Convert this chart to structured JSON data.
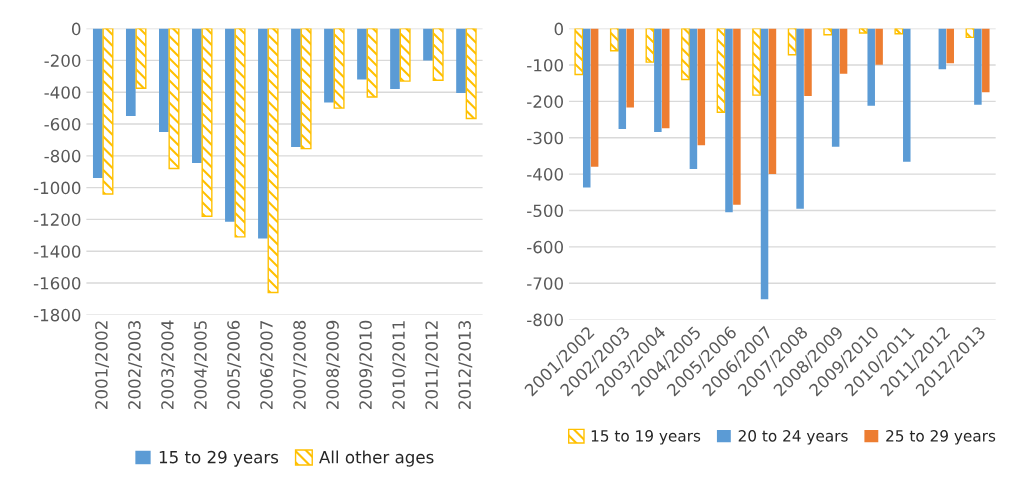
{
  "chart_data": [
    {
      "type": "bar",
      "categories": [
        "2001/2002",
        "2002/2003",
        "2003/2004",
        "2004/2005",
        "2005/2006",
        "2006/2007",
        "2007/2008",
        "2008/2009",
        "2009/2010",
        "2010/2011",
        "2011/2012",
        "2012/2013"
      ],
      "series": [
        {
          "name": "15 to 29 years",
          "color": "#5b9bd5",
          "values": [
            -940,
            -550,
            -650,
            -845,
            -1215,
            -1320,
            -745,
            -465,
            -320,
            -380,
            -200,
            -405
          ]
        },
        {
          "name": "All other ages",
          "color": "#ffc000",
          "values": [
            -1040,
            -375,
            -880,
            -1180,
            -1310,
            -1660,
            -755,
            -500,
            -430,
            -330,
            -325,
            -565
          ]
        }
      ],
      "ylim": [
        -1800,
        0
      ],
      "yticks": [
        -1800,
        -1600,
        -1400,
        -1200,
        -1000,
        -800,
        -600,
        -400,
        -200,
        0
      ],
      "grid": "y",
      "legend": "bottom"
    },
    {
      "type": "bar",
      "categories": [
        "2001/2002",
        "2002/2003",
        "2003/2004",
        "2004/2005",
        "2005/2006",
        "2006/2007",
        "2007/2008",
        "2008/2009",
        "2009/2010",
        "2010/2011",
        "2011/2012",
        "2012/2013"
      ],
      "series": [
        {
          "name": "15 to 19 years",
          "color": "#ffc000",
          "values": [
            -126,
            -61,
            -92,
            -140,
            -230,
            -183,
            -72,
            -17,
            -12,
            -14,
            null,
            -24
          ]
        },
        {
          "name": "20 to 24 years",
          "color": "#5b9bd5",
          "values": [
            -437,
            -276,
            -284,
            -386,
            -505,
            -744,
            -495,
            -325,
            -212,
            -366,
            -112,
            -209
          ]
        },
        {
          "name": "25 to 29 years",
          "color": "#ed7d31",
          "values": [
            -380,
            -217,
            -274,
            -321,
            -484,
            -400,
            -185,
            -124,
            -99,
            null,
            -95,
            -175
          ]
        }
      ],
      "ylim": [
        -800,
        0
      ],
      "yticks": [
        -800,
        -700,
        -600,
        -500,
        -400,
        -300,
        -200,
        -100,
        0
      ],
      "grid": "y",
      "legend": "bottom"
    }
  ]
}
